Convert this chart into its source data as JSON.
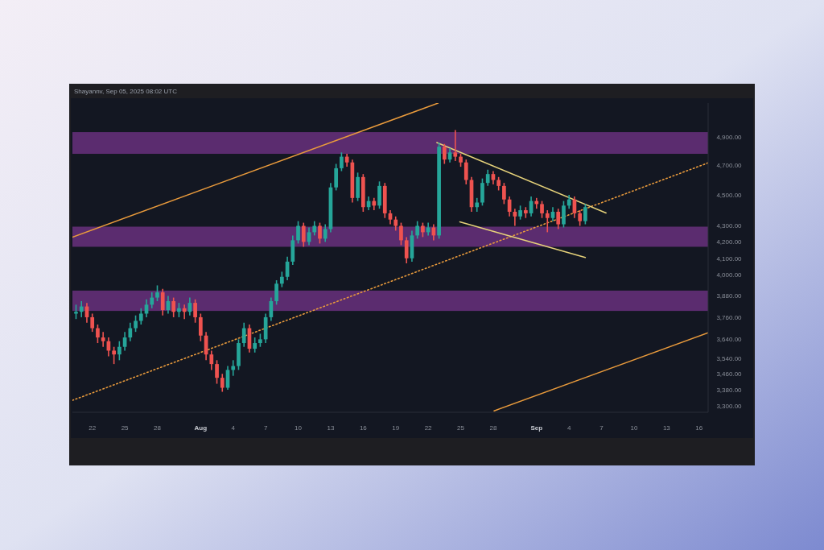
{
  "chart_data": {
    "type": "candlestick",
    "log": true,
    "grid": false,
    "annotations": [
      "Shayannv, Sep 05, 2025 08:02 UTC"
    ],
    "xlim": [
      "2025-07-20T04:00",
      "2025-09-16T20:00"
    ],
    "ylim": [
      3270,
      5150
    ],
    "xticks": [
      {
        "value": "2025-07-22",
        "label": "22"
      },
      {
        "value": "2025-07-25",
        "label": "25"
      },
      {
        "value": "2025-07-28",
        "label": "28"
      },
      {
        "value": "2025-08-01",
        "label": "Aug"
      },
      {
        "value": "2025-08-04",
        "label": "4"
      },
      {
        "value": "2025-08-07",
        "label": "7"
      },
      {
        "value": "2025-08-10",
        "label": "10"
      },
      {
        "value": "2025-08-13",
        "label": "13"
      },
      {
        "value": "2025-08-16",
        "label": "16"
      },
      {
        "value": "2025-08-19",
        "label": "19"
      },
      {
        "value": "2025-08-22",
        "label": "22"
      },
      {
        "value": "2025-08-25",
        "label": "25"
      },
      {
        "value": "2025-08-28",
        "label": "28"
      },
      {
        "value": "2025-09-01",
        "label": "Sep"
      },
      {
        "value": "2025-09-04",
        "label": "4"
      },
      {
        "value": "2025-09-07",
        "label": "7"
      },
      {
        "value": "2025-09-10",
        "label": "10"
      },
      {
        "value": "2025-09-13",
        "label": "13"
      },
      {
        "value": "2025-09-16",
        "label": "16"
      }
    ],
    "yticks": [
      {
        "value": 4900,
        "label": "4,900.00"
      },
      {
        "value": 4700,
        "label": "4,700.00"
      },
      {
        "value": 4500,
        "label": "4,500.00"
      },
      {
        "value": 4300,
        "label": "4,300.00"
      },
      {
        "value": 4200,
        "label": "4,200.00"
      },
      {
        "value": 4100,
        "label": "4,100.00"
      },
      {
        "value": 4000,
        "label": "4,000.00"
      },
      {
        "value": 3880,
        "label": "3,880.00"
      },
      {
        "value": 3760,
        "label": "3,760.00"
      },
      {
        "value": 3640,
        "label": "3,640.00"
      },
      {
        "value": 3540,
        "label": "3,540.00"
      },
      {
        "value": 3460,
        "label": "3,460.00"
      },
      {
        "value": 3380,
        "label": "3,380.00"
      },
      {
        "value": 3300,
        "label": "3,300.00"
      }
    ],
    "bands": [
      {
        "axis": "y",
        "from": 4780,
        "to": 4935,
        "color": "#5b2c6f"
      },
      {
        "axis": "y",
        "from": 4170,
        "to": 4295,
        "color": "#5b2c6f"
      },
      {
        "axis": "y",
        "from": 3795,
        "to": 3910,
        "color": "#5b2c6f"
      }
    ],
    "x": [
      "2025-07-20T12:00",
      "2025-07-21T00:00",
      "2025-07-21T12:00",
      "2025-07-22T00:00",
      "2025-07-22T12:00",
      "2025-07-23T00:00",
      "2025-07-23T12:00",
      "2025-07-24T00:00",
      "2025-07-24T12:00",
      "2025-07-25T00:00",
      "2025-07-25T12:00",
      "2025-07-26T00:00",
      "2025-07-26T12:00",
      "2025-07-27T00:00",
      "2025-07-27T12:00",
      "2025-07-28T00:00",
      "2025-07-28T12:00",
      "2025-07-29T00:00",
      "2025-07-29T12:00",
      "2025-07-30T00:00",
      "2025-07-30T12:00",
      "2025-07-31T00:00",
      "2025-07-31T12:00",
      "2025-08-01T00:00",
      "2025-08-01T12:00",
      "2025-08-02T00:00",
      "2025-08-02T12:00",
      "2025-08-03T00:00",
      "2025-08-03T12:00",
      "2025-08-04T00:00",
      "2025-08-04T12:00",
      "2025-08-05T00:00",
      "2025-08-05T12:00",
      "2025-08-06T00:00",
      "2025-08-06T12:00",
      "2025-08-07T00:00",
      "2025-08-07T12:00",
      "2025-08-08T00:00",
      "2025-08-08T12:00",
      "2025-08-09T00:00",
      "2025-08-09T12:00",
      "2025-08-10T00:00",
      "2025-08-10T12:00",
      "2025-08-11T00:00",
      "2025-08-11T12:00",
      "2025-08-12T00:00",
      "2025-08-12T12:00",
      "2025-08-13T00:00",
      "2025-08-13T12:00",
      "2025-08-14T00:00",
      "2025-08-14T12:00",
      "2025-08-15T00:00",
      "2025-08-15T12:00",
      "2025-08-16T00:00",
      "2025-08-16T12:00",
      "2025-08-17T00:00",
      "2025-08-17T12:00",
      "2025-08-18T00:00",
      "2025-08-18T12:00",
      "2025-08-19T00:00",
      "2025-08-19T12:00",
      "2025-08-20T00:00",
      "2025-08-20T12:00",
      "2025-08-21T00:00",
      "2025-08-21T12:00",
      "2025-08-22T00:00",
      "2025-08-22T12:00",
      "2025-08-23T00:00",
      "2025-08-23T12:00",
      "2025-08-24T00:00",
      "2025-08-24T12:00",
      "2025-08-25T00:00",
      "2025-08-25T12:00",
      "2025-08-26T00:00",
      "2025-08-26T12:00",
      "2025-08-27T00:00",
      "2025-08-27T12:00",
      "2025-08-28T00:00",
      "2025-08-28T12:00",
      "2025-08-29T00:00",
      "2025-08-29T12:00",
      "2025-08-30T00:00",
      "2025-08-30T12:00",
      "2025-08-31T00:00",
      "2025-08-31T12:00",
      "2025-09-01T00:00",
      "2025-09-01T12:00",
      "2025-09-02T00:00",
      "2025-09-02T12:00",
      "2025-09-03T00:00",
      "2025-09-03T12:00",
      "2025-09-04T00:00",
      "2025-09-04T12:00",
      "2025-09-05T00:00",
      "2025-09-05T12:00"
    ],
    "ohlc": [
      [
        3780,
        3830,
        3750,
        3790
      ],
      [
        3790,
        3850,
        3760,
        3820
      ],
      [
        3820,
        3840,
        3730,
        3760
      ],
      [
        3760,
        3780,
        3680,
        3700
      ],
      [
        3700,
        3720,
        3620,
        3650
      ],
      [
        3650,
        3680,
        3600,
        3630
      ],
      [
        3630,
        3650,
        3550,
        3580
      ],
      [
        3580,
        3600,
        3510,
        3560
      ],
      [
        3560,
        3630,
        3530,
        3600
      ],
      [
        3600,
        3680,
        3580,
        3650
      ],
      [
        3650,
        3730,
        3630,
        3700
      ],
      [
        3700,
        3770,
        3680,
        3740
      ],
      [
        3740,
        3810,
        3720,
        3780
      ],
      [
        3780,
        3860,
        3760,
        3830
      ],
      [
        3830,
        3900,
        3810,
        3870
      ],
      [
        3870,
        3940,
        3850,
        3900
      ],
      [
        3900,
        3920,
        3770,
        3800
      ],
      [
        3800,
        3880,
        3780,
        3850
      ],
      [
        3850,
        3870,
        3760,
        3790
      ],
      [
        3790,
        3840,
        3760,
        3810
      ],
      [
        3810,
        3830,
        3750,
        3790
      ],
      [
        3790,
        3870,
        3770,
        3840
      ],
      [
        3840,
        3860,
        3730,
        3760
      ],
      [
        3760,
        3780,
        3630,
        3660
      ],
      [
        3660,
        3680,
        3530,
        3560
      ],
      [
        3560,
        3580,
        3480,
        3510
      ],
      [
        3510,
        3530,
        3410,
        3440
      ],
      [
        3440,
        3460,
        3370,
        3390
      ],
      [
        3390,
        3500,
        3380,
        3480
      ],
      [
        3480,
        3530,
        3450,
        3500
      ],
      [
        3500,
        3640,
        3480,
        3620
      ],
      [
        3620,
        3730,
        3600,
        3700
      ],
      [
        3700,
        3720,
        3570,
        3590
      ],
      [
        3590,
        3650,
        3570,
        3620
      ],
      [
        3620,
        3670,
        3600,
        3640
      ],
      [
        3640,
        3780,
        3620,
        3760
      ],
      [
        3760,
        3870,
        3740,
        3850
      ],
      [
        3850,
        3970,
        3830,
        3950
      ],
      [
        3950,
        4020,
        3930,
        3990
      ],
      [
        3990,
        4110,
        3970,
        4080
      ],
      [
        4080,
        4240,
        4060,
        4210
      ],
      [
        4210,
        4330,
        4190,
        4300
      ],
      [
        4300,
        4320,
        4170,
        4200
      ],
      [
        4200,
        4290,
        4180,
        4260
      ],
      [
        4260,
        4330,
        4240,
        4300
      ],
      [
        4300,
        4320,
        4190,
        4220
      ],
      [
        4220,
        4310,
        4200,
        4280
      ],
      [
        4280,
        4580,
        4260,
        4550
      ],
      [
        4550,
        4710,
        4530,
        4680
      ],
      [
        4680,
        4790,
        4660,
        4760
      ],
      [
        4760,
        4780,
        4690,
        4720
      ],
      [
        4720,
        4740,
        4450,
        4480
      ],
      [
        4480,
        4650,
        4460,
        4620
      ],
      [
        4620,
        4640,
        4390,
        4420
      ],
      [
        4420,
        4490,
        4400,
        4460
      ],
      [
        4460,
        4480,
        4400,
        4430
      ],
      [
        4430,
        4590,
        4410,
        4560
      ],
      [
        4560,
        4580,
        4350,
        4380
      ],
      [
        4380,
        4400,
        4310,
        4340
      ],
      [
        4340,
        4360,
        4270,
        4300
      ],
      [
        4300,
        4320,
        4180,
        4210
      ],
      [
        4210,
        4230,
        4070,
        4100
      ],
      [
        4100,
        4270,
        4080,
        4240
      ],
      [
        4240,
        4330,
        4220,
        4300
      ],
      [
        4300,
        4320,
        4230,
        4260
      ],
      [
        4260,
        4320,
        4240,
        4290
      ],
      [
        4290,
        4310,
        4210,
        4240
      ],
      [
        4240,
        4860,
        4220,
        4830
      ],
      [
        4830,
        4850,
        4710,
        4740
      ],
      [
        4740,
        4820,
        4720,
        4790
      ],
      [
        4790,
        4950,
        4730,
        4760
      ],
      [
        4760,
        4780,
        4690,
        4720
      ],
      [
        4720,
        4740,
        4570,
        4600
      ],
      [
        4600,
        4620,
        4390,
        4420
      ],
      [
        4420,
        4480,
        4390,
        4450
      ],
      [
        4450,
        4610,
        4430,
        4580
      ],
      [
        4580,
        4670,
        4560,
        4640
      ],
      [
        4640,
        4660,
        4570,
        4600
      ],
      [
        4600,
        4620,
        4530,
        4560
      ],
      [
        4560,
        4580,
        4440,
        4470
      ],
      [
        4470,
        4490,
        4360,
        4390
      ],
      [
        4390,
        4410,
        4300,
        4360
      ],
      [
        4360,
        4430,
        4340,
        4400
      ],
      [
        4400,
        4420,
        4350,
        4380
      ],
      [
        4380,
        4490,
        4360,
        4460
      ],
      [
        4460,
        4480,
        4410,
        4440
      ],
      [
        4440,
        4460,
        4350,
        4380
      ],
      [
        4380,
        4400,
        4260,
        4350
      ],
      [
        4350,
        4420,
        4330,
        4390
      ],
      [
        4390,
        4410,
        4280,
        4310
      ],
      [
        4310,
        4460,
        4290,
        4430
      ],
      [
        4430,
        4500,
        4410,
        4470
      ],
      [
        4470,
        4490,
        4350,
        4380
      ],
      [
        4380,
        4400,
        4300,
        4330
      ],
      [
        4330,
        4440,
        4310,
        4420
      ]
    ],
    "series": [
      {
        "type": "line",
        "color": "#e89a3c",
        "line_style": "solid",
        "x": [
          "2025-07-20T04:00",
          "2025-08-22T22:00"
        ],
        "values": [
          4229,
          5150
        ]
      },
      {
        "type": "line",
        "color": "#e89a3c",
        "line_style": "solid",
        "x": [
          "2025-08-28T02:00",
          "2025-09-16T20:00"
        ],
        "values": [
          3277,
          3675
        ]
      },
      {
        "type": "line",
        "color": "#e89a3c",
        "line_style": "dotted",
        "x": [
          "2025-07-20T04:00",
          "2025-09-16T20:00"
        ],
        "values": [
          3328,
          4717
        ]
      },
      {
        "type": "line",
        "color": "#e6d27a",
        "line_style": "solid",
        "x": [
          "2025-08-22T19:00",
          "2025-09-07T10:00"
        ],
        "values": [
          4860,
          4382
        ]
      },
      {
        "type": "line",
        "color": "#e6d27a",
        "line_style": "solid",
        "x": [
          "2025-08-24T22:00",
          "2025-09-05T12:00"
        ],
        "values": [
          4326,
          4105
        ]
      }
    ]
  }
}
